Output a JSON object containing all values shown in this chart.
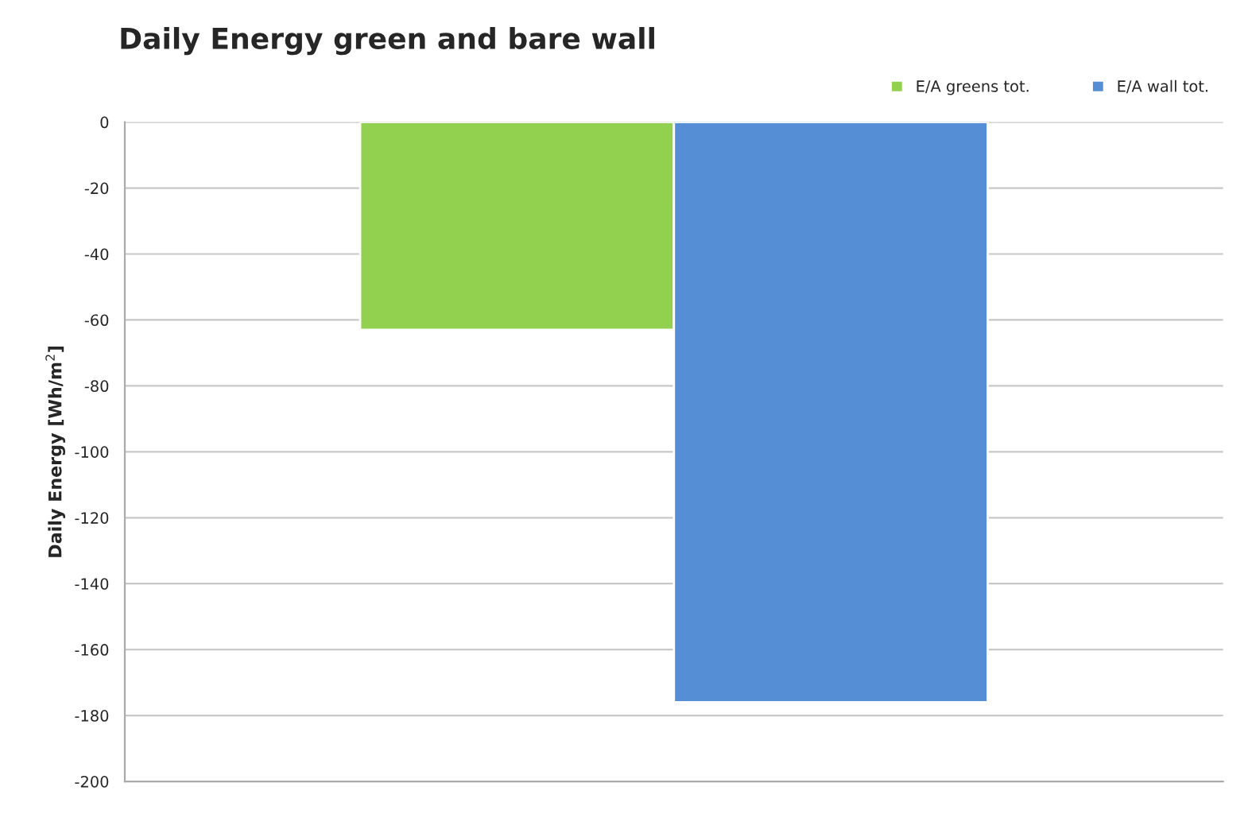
{
  "chart_data": {
    "type": "bar",
    "title": "Daily Energy green and bare wall",
    "ylabel": "Daily Energy [Wh/m$^{2}$]",
    "categories": [
      null
    ],
    "series": [
      {
        "name": "E/A greens tot.",
        "color": "#92d050",
        "values": [
          -63
        ]
      },
      {
        "name": "E/A wall tot.",
        "color": "#558ed5",
        "values": [
          -176
        ]
      }
    ],
    "ylim": [
      -200,
      0
    ],
    "yticks": [
      -200,
      -180,
      -160,
      -140,
      -120,
      -100,
      -80,
      -60,
      -40,
      -20,
      0
    ],
    "grid": "y",
    "legend": "top right"
  }
}
